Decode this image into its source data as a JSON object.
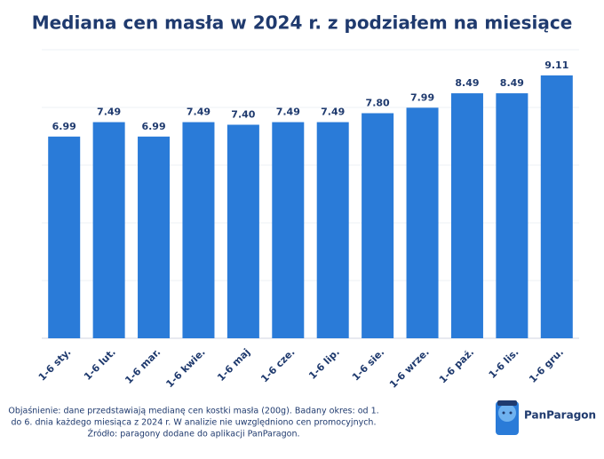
{
  "chart_data": {
    "type": "bar",
    "title": "Mediana cen masła w 2024 r. z podziałem na miesiące",
    "categories": [
      "1-6 sty.",
      "1-6 lut.",
      "1-6 mar.",
      "1-6 kwie.",
      "1-6 maj",
      "1-6 cze.",
      "1-6 lip.",
      "1-6 sie.",
      "1-6 wrze.",
      "1-6 paź.",
      "1-6 lis.",
      "1-6 gru."
    ],
    "values": [
      6.99,
      7.49,
      6.99,
      7.49,
      7.4,
      7.49,
      7.49,
      7.8,
      7.99,
      8.49,
      8.49,
      9.11
    ],
    "value_labels": [
      "6.99",
      "7.49",
      "6.99",
      "7.49",
      "7.40",
      "7.49",
      "7.49",
      "7.80",
      "7.99",
      "8.49",
      "8.49",
      "9.11"
    ],
    "color": "#2a7bd8",
    "ylim": [
      0,
      10
    ],
    "yticks": [
      0,
      2,
      4,
      6,
      8,
      10
    ],
    "grid": true
  },
  "notes": [
    "Objaśnienie: dane przedstawiają medianę cen kostki masła (200g). Badany okres:  od 1.",
    "do 6. dnia każdego miesiąca z 2024 r. W analizie nie  uwzględniono cen promocyjnych.",
    "Źródło: paragony dodane do aplikacji PanParagon."
  ],
  "logo": "PanParagon"
}
